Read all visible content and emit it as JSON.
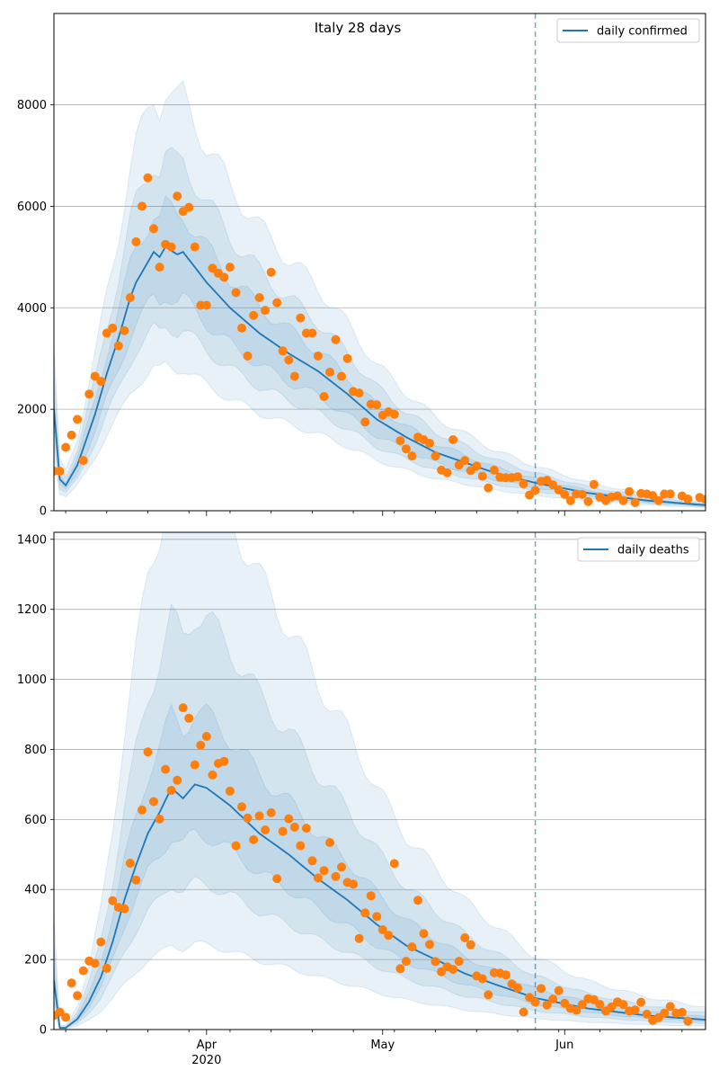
{
  "figure": {
    "title": "Italy 28 days"
  },
  "x_axis": {
    "range": [
      "2020-03-06",
      "2020-06-25"
    ],
    "major_ticks": [
      {
        "date": "2020-04-01",
        "label": "Apr"
      },
      {
        "date": "2020-05-01",
        "label": "May"
      },
      {
        "date": "2020-06-01",
        "label": "Jun"
      }
    ],
    "year_label": "2020",
    "minor_ticks": [
      "2020-03-08",
      "2020-03-15",
      "2020-03-22",
      "2020-03-29",
      "2020-04-05",
      "2020-04-12",
      "2020-04-19",
      "2020-04-26",
      "2020-05-03",
      "2020-05-10",
      "2020-05-17",
      "2020-05-24",
      "2020-05-31",
      "2020-06-07",
      "2020-06-14",
      "2020-06-21"
    ]
  },
  "chart_data": [
    {
      "type": "line",
      "panel": "top",
      "title": "Italy 28 days",
      "legend": {
        "label": "daily confirmed",
        "placement": "top-right"
      },
      "ylim": [
        0,
        9800
      ],
      "yticks": [
        0,
        2000,
        4000,
        6000,
        8000
      ],
      "grid": "horizontal",
      "forecast_start": "2020-05-27",
      "colors": {
        "line": "#1f77b4",
        "band": "#1f77b4",
        "points": "#ff7f0e",
        "vline": "#1f77b4"
      },
      "model_knots": [
        [
          "2020-03-06",
          2000
        ],
        [
          "2020-03-07",
          620
        ],
        [
          "2020-03-08",
          500
        ],
        [
          "2020-03-10",
          900
        ],
        [
          "2020-03-13",
          1900
        ],
        [
          "2020-03-15",
          2700
        ],
        [
          "2020-03-17",
          3400
        ],
        [
          "2020-03-19",
          4200
        ],
        [
          "2020-03-20",
          4500
        ],
        [
          "2020-03-22",
          4900
        ],
        [
          "2020-03-23",
          5100
        ],
        [
          "2020-03-24",
          5000
        ],
        [
          "2020-03-25",
          5200
        ],
        [
          "2020-03-27",
          5050
        ],
        [
          "2020-03-28",
          5100
        ],
        [
          "2020-04-01",
          4500
        ],
        [
          "2020-04-05",
          4000
        ],
        [
          "2020-04-10",
          3500
        ],
        [
          "2020-04-15",
          3100
        ],
        [
          "2020-04-20",
          2750
        ],
        [
          "2020-04-25",
          2300
        ],
        [
          "2020-04-30",
          1800
        ],
        [
          "2020-05-05",
          1450
        ],
        [
          "2020-05-10",
          1150
        ],
        [
          "2020-05-15",
          950
        ],
        [
          "2020-05-20",
          750
        ],
        [
          "2020-05-27",
          550
        ],
        [
          "2020-06-05",
          350
        ],
        [
          "2020-06-15",
          200
        ],
        [
          "2020-06-25",
          110
        ]
      ],
      "band_multipliers": [
        [
          0.55,
          1.6
        ],
        [
          0.7,
          1.35
        ],
        [
          0.82,
          1.15
        ]
      ],
      "observed_knots": [
        [
          "2020-03-06",
          780
        ],
        [
          "2020-03-07",
          780
        ],
        [
          "2020-03-08",
          1250
        ],
        [
          "2020-03-09",
          1490
        ],
        [
          "2020-03-10",
          1800
        ],
        [
          "2020-03-11",
          990
        ],
        [
          "2020-03-12",
          2300
        ],
        [
          "2020-03-13",
          2650
        ],
        [
          "2020-03-14",
          2550
        ],
        [
          "2020-03-15",
          3500
        ],
        [
          "2020-03-16",
          3600
        ],
        [
          "2020-03-17",
          3250
        ],
        [
          "2020-03-18",
          3550
        ],
        [
          "2020-03-19",
          4200
        ],
        [
          "2020-03-20",
          5300
        ],
        [
          "2020-03-21",
          6000
        ],
        [
          "2020-03-22",
          6560
        ],
        [
          "2020-03-23",
          5560
        ],
        [
          "2020-03-24",
          4800
        ],
        [
          "2020-03-25",
          5250
        ],
        [
          "2020-03-26",
          5200
        ],
        [
          "2020-03-27",
          6200
        ],
        [
          "2020-03-28",
          5900
        ],
        [
          "2020-03-29",
          5980
        ],
        [
          "2020-03-30",
          5200
        ],
        [
          "2020-03-31",
          4050
        ],
        [
          "2020-04-01",
          4050
        ],
        [
          "2020-04-02",
          4780
        ],
        [
          "2020-04-03",
          4680
        ],
        [
          "2020-04-04",
          4600
        ],
        [
          "2020-04-05",
          4800
        ],
        [
          "2020-04-06",
          4300
        ],
        [
          "2020-04-07",
          3600
        ],
        [
          "2020-04-08",
          3050
        ],
        [
          "2020-04-09",
          3850
        ],
        [
          "2020-04-10",
          4200
        ],
        [
          "2020-04-11",
          3950
        ],
        [
          "2020-04-12",
          4700
        ],
        [
          "2020-04-13",
          4100
        ],
        [
          "2020-04-14",
          3150
        ],
        [
          "2020-04-15",
          2970
        ],
        [
          "2020-04-16",
          2650
        ],
        [
          "2020-04-17",
          3800
        ],
        [
          "2020-04-18",
          3500
        ],
        [
          "2020-04-19",
          3500
        ],
        [
          "2020-04-20",
          3050
        ],
        [
          "2020-04-21",
          2250
        ],
        [
          "2020-04-22",
          2730
        ],
        [
          "2020-04-23",
          3370
        ],
        [
          "2020-04-24",
          2650
        ],
        [
          "2020-04-25",
          3000
        ],
        [
          "2020-04-26",
          2350
        ],
        [
          "2020-04-27",
          2320
        ],
        [
          "2020-04-28",
          1750
        ],
        [
          "2020-04-29",
          2100
        ],
        [
          "2020-04-30",
          2090
        ],
        [
          "2020-05-01",
          1880
        ],
        [
          "2020-05-02",
          1950
        ],
        [
          "2020-05-03",
          1900
        ],
        [
          "2020-05-04",
          1380
        ],
        [
          "2020-05-05",
          1220
        ],
        [
          "2020-05-06",
          1080
        ],
        [
          "2020-05-07",
          1450
        ],
        [
          "2020-05-08",
          1400
        ],
        [
          "2020-05-09",
          1330
        ],
        [
          "2020-05-10",
          1080
        ],
        [
          "2020-05-11",
          800
        ],
        [
          "2020-05-12",
          750
        ],
        [
          "2020-05-13",
          1400
        ],
        [
          "2020-05-14",
          900
        ],
        [
          "2020-05-15",
          990
        ],
        [
          "2020-05-16",
          790
        ],
        [
          "2020-05-17",
          880
        ],
        [
          "2020-05-18",
          680
        ],
        [
          "2020-05-19",
          450
        ],
        [
          "2020-05-20",
          800
        ],
        [
          "2020-05-21",
          660
        ],
        [
          "2020-05-22",
          650
        ],
        [
          "2020-05-23",
          650
        ],
        [
          "2020-05-24",
          670
        ],
        [
          "2020-05-25",
          530
        ],
        [
          "2020-05-26",
          310
        ],
        [
          "2020-05-27",
          400
        ],
        [
          "2020-05-28",
          580
        ],
        [
          "2020-05-29",
          600
        ],
        [
          "2020-05-30",
          510
        ],
        [
          "2020-05-31",
          410
        ],
        [
          "2020-06-01",
          320
        ],
        [
          "2020-06-02",
          200
        ],
        [
          "2020-06-03",
          330
        ],
        [
          "2020-06-04",
          320
        ],
        [
          "2020-06-05",
          180
        ],
        [
          "2020-06-06",
          520
        ],
        [
          "2020-06-07",
          270
        ],
        [
          "2020-06-08",
          200
        ],
        [
          "2020-06-09",
          270
        ],
        [
          "2020-06-10",
          290
        ],
        [
          "2020-06-11",
          200
        ],
        [
          "2020-06-12",
          380
        ],
        [
          "2020-06-13",
          160
        ],
        [
          "2020-06-14",
          340
        ],
        [
          "2020-06-15",
          330
        ],
        [
          "2020-06-16",
          300
        ],
        [
          "2020-06-17",
          200
        ],
        [
          "2020-06-18",
          330
        ],
        [
          "2020-06-19",
          330
        ],
        [
          "2020-06-21",
          290
        ],
        [
          "2020-06-22",
          230
        ],
        [
          "2020-06-24",
          260
        ],
        [
          "2020-06-25",
          220
        ]
      ]
    },
    {
      "type": "line",
      "panel": "bottom",
      "title": "",
      "legend": {
        "label": "daily deaths",
        "placement": "top-right"
      },
      "ylim": [
        0,
        1420
      ],
      "yticks": [
        0,
        200,
        400,
        600,
        800,
        1000,
        1200,
        1400
      ],
      "grid": "horizontal",
      "forecast_start": "2020-05-27",
      "colors": {
        "line": "#1f77b4",
        "band": "#1f77b4",
        "points": "#ff7f0e",
        "vline": "#1f77b4"
      },
      "model_knots": [
        [
          "2020-03-06",
          140
        ],
        [
          "2020-03-07",
          5
        ],
        [
          "2020-03-08",
          5
        ],
        [
          "2020-03-10",
          30
        ],
        [
          "2020-03-12",
          80
        ],
        [
          "2020-03-14",
          150
        ],
        [
          "2020-03-16",
          250
        ],
        [
          "2020-03-18",
          370
        ],
        [
          "2020-03-20",
          470
        ],
        [
          "2020-03-22",
          560
        ],
        [
          "2020-03-24",
          620
        ],
        [
          "2020-03-26",
          690
        ],
        [
          "2020-03-28",
          660
        ],
        [
          "2020-03-30",
          700
        ],
        [
          "2020-04-01",
          690
        ],
        [
          "2020-04-05",
          640
        ],
        [
          "2020-04-10",
          560
        ],
        [
          "2020-04-15",
          500
        ],
        [
          "2020-04-20",
          430
        ],
        [
          "2020-04-25",
          370
        ],
        [
          "2020-04-30",
          300
        ],
        [
          "2020-05-05",
          240
        ],
        [
          "2020-05-10",
          200
        ],
        [
          "2020-05-15",
          160
        ],
        [
          "2020-05-20",
          130
        ],
        [
          "2020-05-27",
          90
        ],
        [
          "2020-06-05",
          60
        ],
        [
          "2020-06-15",
          40
        ],
        [
          "2020-06-25",
          28
        ]
      ],
      "band_multipliers": [
        [
          0.35,
          2.3
        ],
        [
          0.6,
          1.7
        ],
        [
          0.8,
          1.3
        ]
      ],
      "observed_knots": [
        [
          "2020-03-06",
          40
        ],
        [
          "2020-03-07",
          50
        ],
        [
          "2020-03-08",
          35
        ],
        [
          "2020-03-09",
          133
        ],
        [
          "2020-03-10",
          97
        ],
        [
          "2020-03-11",
          168
        ],
        [
          "2020-03-12",
          196
        ],
        [
          "2020-03-13",
          189
        ],
        [
          "2020-03-14",
          250
        ],
        [
          "2020-03-15",
          175
        ],
        [
          "2020-03-16",
          368
        ],
        [
          "2020-03-17",
          349
        ],
        [
          "2020-03-18",
          345
        ],
        [
          "2020-03-19",
          475
        ],
        [
          "2020-03-20",
          427
        ],
        [
          "2020-03-21",
          627
        ],
        [
          "2020-03-22",
          793
        ],
        [
          "2020-03-23",
          651
        ],
        [
          "2020-03-24",
          601
        ],
        [
          "2020-03-25",
          743
        ],
        [
          "2020-03-26",
          683
        ],
        [
          "2020-03-27",
          712
        ],
        [
          "2020-03-28",
          919
        ],
        [
          "2020-03-29",
          889
        ],
        [
          "2020-03-30",
          756
        ],
        [
          "2020-03-31",
          812
        ],
        [
          "2020-04-01",
          837
        ],
        [
          "2020-04-02",
          727
        ],
        [
          "2020-04-03",
          760
        ],
        [
          "2020-04-04",
          766
        ],
        [
          "2020-04-05",
          681
        ],
        [
          "2020-04-06",
          525
        ],
        [
          "2020-04-07",
          636
        ],
        [
          "2020-04-08",
          604
        ],
        [
          "2020-04-09",
          542
        ],
        [
          "2020-04-10",
          610
        ],
        [
          "2020-04-11",
          570
        ],
        [
          "2020-04-12",
          619
        ],
        [
          "2020-04-13",
          431
        ],
        [
          "2020-04-14",
          566
        ],
        [
          "2020-04-15",
          602
        ],
        [
          "2020-04-16",
          578
        ],
        [
          "2020-04-17",
          525
        ],
        [
          "2020-04-18",
          575
        ],
        [
          "2020-04-19",
          482
        ],
        [
          "2020-04-20",
          433
        ],
        [
          "2020-04-21",
          454
        ],
        [
          "2020-04-22",
          534
        ],
        [
          "2020-04-23",
          437
        ],
        [
          "2020-04-24",
          464
        ],
        [
          "2020-04-25",
          420
        ],
        [
          "2020-04-26",
          415
        ],
        [
          "2020-04-27",
          260
        ],
        [
          "2020-04-28",
          333
        ],
        [
          "2020-04-29",
          382
        ],
        [
          "2020-04-30",
          323
        ],
        [
          "2020-05-01",
          285
        ],
        [
          "2020-05-02",
          269
        ],
        [
          "2020-05-03",
          474
        ],
        [
          "2020-05-04",
          174
        ],
        [
          "2020-05-05",
          195
        ],
        [
          "2020-05-06",
          236
        ],
        [
          "2020-05-07",
          369
        ],
        [
          "2020-05-08",
          274
        ],
        [
          "2020-05-09",
          243
        ],
        [
          "2020-05-10",
          194
        ],
        [
          "2020-05-11",
          165
        ],
        [
          "2020-05-12",
          179
        ],
        [
          "2020-05-13",
          172
        ],
        [
          "2020-05-14",
          195
        ],
        [
          "2020-05-15",
          262
        ],
        [
          "2020-05-16",
          242
        ],
        [
          "2020-05-17",
          153
        ],
        [
          "2020-05-18",
          145
        ],
        [
          "2020-05-19",
          99
        ],
        [
          "2020-05-20",
          162
        ],
        [
          "2020-05-21",
          161
        ],
        [
          "2020-05-22",
          156
        ],
        [
          "2020-05-23",
          130
        ],
        [
          "2020-05-24",
          119
        ],
        [
          "2020-05-25",
          50
        ],
        [
          "2020-05-26",
          92
        ],
        [
          "2020-05-27",
          78
        ],
        [
          "2020-05-28",
          117
        ],
        [
          "2020-05-29",
          70
        ],
        [
          "2020-05-30",
          87
        ],
        [
          "2020-05-31",
          111
        ],
        [
          "2020-06-01",
          75
        ],
        [
          "2020-06-02",
          60
        ],
        [
          "2020-06-03",
          55
        ],
        [
          "2020-06-04",
          71
        ],
        [
          "2020-06-05",
          88
        ],
        [
          "2020-06-06",
          85
        ],
        [
          "2020-06-07",
          72
        ],
        [
          "2020-06-08",
          53
        ],
        [
          "2020-06-09",
          65
        ],
        [
          "2020-06-10",
          79
        ],
        [
          "2020-06-11",
          71
        ],
        [
          "2020-06-12",
          53
        ],
        [
          "2020-06-13",
          56
        ],
        [
          "2020-06-14",
          78
        ],
        [
          "2020-06-15",
          44
        ],
        [
          "2020-06-16",
          26
        ],
        [
          "2020-06-17",
          34
        ],
        [
          "2020-06-18",
          47
        ],
        [
          "2020-06-19",
          66
        ],
        [
          "2020-06-20",
          47
        ],
        [
          "2020-06-21",
          49
        ],
        [
          "2020-06-22",
          24
        ]
      ]
    }
  ]
}
